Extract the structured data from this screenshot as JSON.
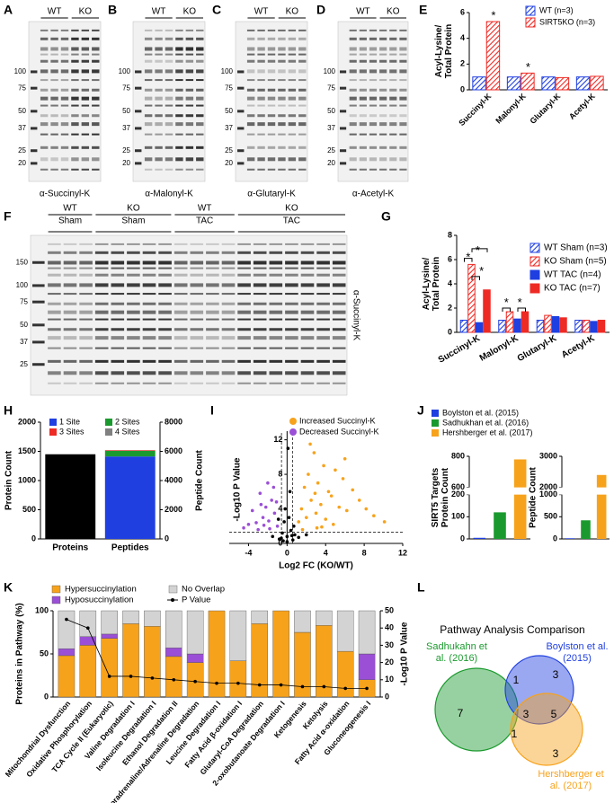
{
  "blots": [
    {
      "letter": "A",
      "groups": [
        {
          "genotype": "WT"
        },
        {
          "genotype": "KO"
        }
      ],
      "markers": [
        100,
        75,
        50,
        37,
        25,
        20
      ],
      "antibody": "α-Succinyl-K"
    },
    {
      "letter": "B",
      "groups": [
        {
          "genotype": "WT"
        },
        {
          "genotype": "KO"
        }
      ],
      "markers": [
        100,
        75,
        50,
        37,
        25,
        20
      ],
      "antibody": "α-Malonyl-K"
    },
    {
      "letter": "C",
      "groups": [
        {
          "genotype": "WT"
        },
        {
          "genotype": "KO"
        }
      ],
      "markers": [
        100,
        75,
        50,
        37,
        25,
        20
      ],
      "antibody": "α-Glutaryl-K"
    },
    {
      "letter": "D",
      "groups": [
        {
          "genotype": "WT"
        },
        {
          "genotype": "KO"
        }
      ],
      "markers": [
        100,
        75,
        50,
        37,
        25,
        20
      ],
      "antibody": "α-Acetyl-K"
    },
    {
      "letter": "F",
      "groups": [
        {
          "genotype": "WT",
          "condition": "Sham"
        },
        {
          "genotype": "KO",
          "condition": "Sham"
        },
        {
          "genotype": "WT",
          "condition": "TAC"
        },
        {
          "genotype": "KO",
          "condition": "TAC"
        }
      ],
      "markers": [
        150,
        100,
        75,
        50,
        37,
        25
      ],
      "antibody": "α-Succinyl-K"
    }
  ],
  "chart_data": [
    {
      "type": "bar",
      "letter": "E",
      "y_label": [
        "Acyl-Lysine/",
        "Total Protein"
      ],
      "categories": [
        "Succinyl-K",
        "Malonyl-K",
        "Glutaryl-K",
        "Acetyl-K"
      ],
      "series": [
        {
          "name": "WT (n=3)",
          "color": "#1f3fe0",
          "hatch": true,
          "values": [
            1,
            1,
            1,
            1
          ]
        },
        {
          "name": "SIRT5KO (n=3)",
          "color": "#ee2a24",
          "hatch": true,
          "values": [
            5.3,
            1.3,
            0.95,
            1.05
          ],
          "significance": [
            "*",
            "*",
            null,
            null
          ]
        }
      ],
      "ylim": [
        0,
        6
      ],
      "yticks": [
        0,
        2,
        4,
        6
      ]
    },
    {
      "type": "bar",
      "letter": "G",
      "y_label": [
        "Acyl-Lysine/",
        "Total Protein"
      ],
      "categories": [
        "Succinyl-K",
        "Malonyl-K",
        "Glutaryl-K",
        "Acetyl-K"
      ],
      "series": [
        {
          "name": "WT Sham (n=3)",
          "color": "#1f3fe0",
          "hatch": true,
          "values": [
            1,
            1,
            1,
            1
          ]
        },
        {
          "name": "KO Sham (n=5)",
          "color": "#ee2a24",
          "hatch": true,
          "values": [
            5.6,
            1.7,
            1.4,
            1.0
          ]
        },
        {
          "name": "WT TAC (n=4)",
          "color": "#1f3fe0",
          "hatch": false,
          "values": [
            0.8,
            1.1,
            1.3,
            0.9
          ]
        },
        {
          "name": "KO TAC (n=7)",
          "color": "#ee2a24",
          "hatch": false,
          "values": [
            3.5,
            1.7,
            1.2,
            1.0
          ]
        }
      ],
      "annotations": [
        "*",
        "*",
        "*",
        "*",
        "*"
      ],
      "ylim": [
        0,
        8
      ],
      "yticks": [
        0,
        2,
        4,
        6,
        8
      ]
    },
    {
      "type": "bar",
      "letter": "H",
      "y_label": "Protein Count",
      "y2_label": "Peptide Count",
      "categories": [
        "Proteins",
        "Peptides"
      ],
      "series": [
        {
          "color": "#000000",
          "axis": "y",
          "values": [
            1450,
            null
          ]
        },
        {
          "name": "1 Site",
          "color": "#1f3fe0",
          "axis": "y2",
          "values": [
            null,
            5650
          ]
        },
        {
          "name": "2 Sites",
          "color": "#1a9a2e",
          "axis": "y2",
          "values": [
            null,
            380
          ]
        },
        {
          "name": "3 Sites",
          "color": "#ee2a24",
          "axis": "y2",
          "values": [
            null,
            40
          ]
        },
        {
          "name": "4 Sites",
          "color": "#808080",
          "axis": "y2",
          "values": [
            null,
            10
          ]
        }
      ],
      "ylim": [
        0,
        2000
      ],
      "yticks": [
        0,
        500,
        1000,
        1500,
        2000
      ],
      "y2lim": [
        0,
        8000
      ],
      "y2ticks": [
        0,
        2000,
        4000,
        6000,
        8000
      ]
    },
    {
      "type": "scatter",
      "letter": "I",
      "x_label": "Log2 FC (KO/WT)",
      "y_label": "-Log10 P Value",
      "series": [
        {
          "name": "Increased Succinyl-K",
          "color": "#f7a21b",
          "x": [
            1.2,
            1.5,
            1.8,
            2.0,
            2.2,
            2.5,
            2.8,
            3.0,
            3.2,
            3.5,
            3.8,
            4.0,
            4.3,
            4.6,
            5.0,
            5.4,
            5.8,
            6.2,
            6.8,
            7.5,
            8.2,
            9.0,
            10.1,
            2.4,
            3.1,
            1.6,
            4.8,
            3.6,
            2.9,
            6.0
          ],
          "values": [
            2.5,
            4.0,
            6.5,
            3.0,
            8.0,
            5.0,
            10.5,
            3.5,
            7.0,
            4.5,
            9.0,
            2.8,
            6.0,
            5.5,
            8.5,
            4.2,
            7.5,
            3.8,
            6.2,
            5.0,
            4.0,
            3.2,
            2.5,
            11.5,
            1.8,
            1.6,
            2.2,
            1.9,
            5.8,
            9.8
          ]
        },
        {
          "name": "Decreased Succinyl-K",
          "color": "#9b4fd6",
          "x": [
            -1.0,
            -1.3,
            -1.6,
            -1.9,
            -2.2,
            -2.5,
            -2.8,
            -3.2,
            -3.6,
            -4.0,
            -4.5,
            -1.4,
            -2.0,
            -2.7,
            -3.0,
            -1.1,
            -1.8,
            -2.4
          ],
          "values": [
            2.0,
            3.5,
            5.0,
            2.6,
            4.2,
            3.0,
            5.8,
            2.4,
            3.8,
            2.2,
            1.8,
            6.5,
            7.0,
            4.5,
            1.6,
            4.8,
            1.7,
            2.1
          ]
        },
        {
          "color": "#000000",
          "x": [
            -0.8,
            -0.5,
            -0.3,
            0,
            0.2,
            0.4,
            0.6,
            0.8,
            -0.6,
            0.1,
            -0.2,
            0.5,
            1.2,
            -1.5,
            2.0,
            -0.9,
            0.3,
            -0.4,
            0.7,
            0.0
          ],
          "values": [
            0.5,
            1.2,
            2.5,
            0.8,
            3.0,
            1.5,
            0.4,
            1.0,
            0.6,
            11.0,
            4.0,
            0.9,
            0.7,
            0.8,
            1.0,
            2.8,
            6.0,
            0.3,
            2.0,
            0.2
          ]
        }
      ],
      "x_thresholds": [
        -0.58,
        0.58
      ],
      "y_threshold": 1.3,
      "xlim": [
        -6,
        12
      ],
      "xticks": [
        -4,
        0,
        4,
        8,
        12
      ],
      "ylim": [
        0,
        13
      ],
      "yticks": [
        0,
        4,
        8,
        12
      ]
    },
    {
      "type": "bar",
      "letter": "J",
      "y_label": [
        "SIRT5 Targets",
        "Protein Count"
      ],
      "categories": [
        null
      ],
      "series": [
        {
          "name": "Boylston et al. (2015)",
          "color": "#1f3fe0",
          "values": [
            5
          ]
        },
        {
          "name": "Sadhukhan et al. (2016)",
          "color": "#1a9a2e",
          "values": [
            120
          ]
        },
        {
          "name": "Hershberger et al. (2017)",
          "color": "#f7a21b",
          "values": [
            780
          ]
        }
      ],
      "ylim": [
        0,
        800
      ],
      "ybreak": [
        200,
        600
      ],
      "yticks": [
        0,
        100,
        200,
        600,
        800
      ]
    },
    {
      "type": "bar",
      "y_label": [
        "Peptide Count"
      ],
      "categories": [
        null
      ],
      "series": [
        {
          "color": "#1f3fe0",
          "values": [
            15
          ]
        },
        {
          "color": "#1a9a2e",
          "values": [
            420
          ]
        },
        {
          "color": "#f7a21b",
          "values": [
            2400
          ]
        }
      ],
      "ylim": [
        0,
        3000
      ],
      "ybreak": [
        1000,
        2000
      ],
      "yticks": [
        0,
        500,
        1000,
        2000,
        3000
      ]
    },
    {
      "type": "bar",
      "letter": "K",
      "y_label": "Proteins in Pathway (%)",
      "y2_label": "-Log10 P Value",
      "stacked": true,
      "categories": [
        "Mitochondrial Dysfunction",
        "Oxidative Phosphorylation",
        "TCA Cycle II (Eukaryotic)",
        "Valine Degradation I",
        "Isoleucine Degradation I",
        "Ethanol Degradation II",
        "Noradrenaline/Adrenaline Degradation",
        "Leucine Degradation I",
        "Fatty Acid β-oxidation I",
        "Glutaryl-CoA Degradation",
        "2-oxobutanoate Degradation I",
        "Ketogenesis",
        "Ketolysis",
        "Fatty Acid α-oxidation",
        "Gluconeogenesis I"
      ],
      "series": [
        {
          "name": "Hypersuccinylation",
          "color": "#f7a21b",
          "axis": "y",
          "values": [
            48,
            60,
            68,
            85,
            82,
            47,
            40,
            100,
            42,
            85,
            100,
            75,
            83,
            53,
            20
          ]
        },
        {
          "name": "Hyposuccinylation",
          "color": "#9b4fd6",
          "axis": "y",
          "values": [
            8,
            10,
            5,
            0,
            0,
            10,
            10,
            0,
            0,
            0,
            0,
            0,
            0,
            0,
            30
          ]
        },
        {
          "name": "No Overlap",
          "color": "#d3d3d3",
          "axis": "y",
          "values": [
            44,
            30,
            27,
            15,
            18,
            43,
            50,
            0,
            58,
            15,
            0,
            25,
            17,
            47,
            50
          ]
        },
        {
          "name": "P Value",
          "color": "#000000",
          "axis": "y2",
          "kind": "line",
          "values": [
            45,
            40,
            12,
            12,
            11,
            10,
            9,
            8,
            8,
            7,
            7,
            6,
            6,
            5,
            5
          ]
        }
      ],
      "ylim": [
        0,
        100
      ],
      "yticks": [
        0,
        50,
        100
      ],
      "y2lim": [
        0,
        50
      ],
      "y2ticks": [
        0,
        10,
        20,
        30,
        40,
        50
      ]
    }
  ],
  "venn": {
    "letter": "L",
    "title": "Pathway Analysis Comparison",
    "sets": [
      {
        "label": [
          "Sadhukahn et",
          "al. (2016)"
        ],
        "color": "#1a9a2e"
      },
      {
        "label": [
          "Boylston et al.",
          "(2015)"
        ],
        "color": "#1f3fe0"
      },
      {
        "label": [
          "Hershberger et",
          "al. (2017)"
        ],
        "color": "#f7a21b"
      }
    ],
    "regions": [
      7,
      3,
      3,
      1,
      1,
      5,
      3
    ]
  }
}
